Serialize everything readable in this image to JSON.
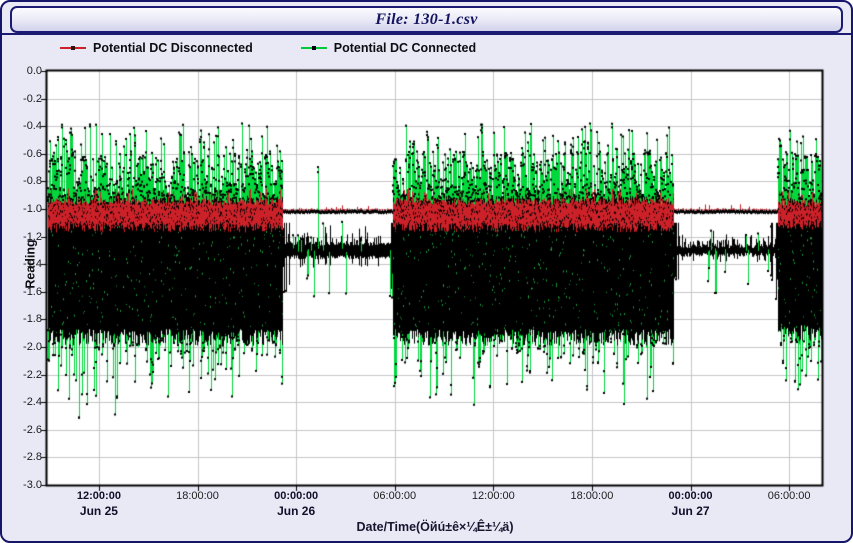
{
  "window": {
    "title": "File: 130-1.csv"
  },
  "colors": {
    "frame_border": "#15156a",
    "window_background": "#e9e9f6",
    "plot_background": "#ffffff",
    "grid": "#c6c6ca",
    "axis": "#000000",
    "red_series": "#cc2129",
    "green_series": "#00d93c",
    "marker_black": "#000000"
  },
  "legend": [
    {
      "label": "Potential DC Disconnected",
      "line_color": "#cc2129",
      "marker_color": "#35100f"
    },
    {
      "label": "Potential DC Connected",
      "line_color": "#00c93a",
      "marker_color": "#000000"
    }
  ],
  "chart_data": {
    "type": "line",
    "title": "File: 130-1.csv",
    "xlabel": "Date/Time(Öйú±ê×¼Ê±¼ä)",
    "ylabel": "Reading",
    "ylim": [
      -3.0,
      0.0
    ],
    "ytick_step": 0.2,
    "yticks": [
      "0.0",
      "-0.2",
      "-0.4",
      "-0.6",
      "-0.8",
      "-1.0",
      "-1.2",
      "-1.4",
      "-1.6",
      "-1.8",
      "-2.0",
      "-2.2",
      "-2.4",
      "-2.6",
      "-2.8",
      "-3.0"
    ],
    "grid": true,
    "legend_position": "top-left",
    "x_hours_range": [
      8.84,
      56.0
    ],
    "x_hours_origin": "Jun 25 00:00:00",
    "xticks": [
      {
        "t": 12,
        "time": "12:00:00",
        "date": "Jun 25"
      },
      {
        "t": 18,
        "time": "18:00:00"
      },
      {
        "t": 24,
        "time": "00:00:00",
        "date": "Jun 26"
      },
      {
        "t": 30,
        "time": "06:00:00"
      },
      {
        "t": 36,
        "time": "12:00:00"
      },
      {
        "t": 42,
        "time": "18:00:00"
      },
      {
        "t": 48,
        "time": "00:00:00",
        "date": "Jun 27"
      },
      {
        "t": 54,
        "time": "06:00:00"
      }
    ],
    "series": [
      {
        "name": "Potential DC Disconnected",
        "line_color": "#cc2129",
        "marker_color": "#000000",
        "segments": [
          {
            "t": [
              8.84,
              23.2
            ],
            "mode": "active",
            "band": [
              -1.17,
              -0.92
            ],
            "spike_up_max": -0.85
          },
          {
            "t": [
              23.2,
              29.85
            ],
            "mode": "quiet",
            "level": -1.02
          },
          {
            "t": [
              29.85,
              46.95
            ],
            "mode": "active",
            "band": [
              -1.17,
              -0.92
            ],
            "spike_up_max": -0.85
          },
          {
            "t": [
              46.95,
              53.3
            ],
            "mode": "quiet",
            "level": -1.02
          },
          {
            "t": [
              53.3,
              56.0
            ],
            "mode": "active",
            "band": [
              -1.15,
              -0.93
            ],
            "spike_up_max": -0.86
          }
        ]
      },
      {
        "name": "Potential DC Connected",
        "line_color": "#00d93c",
        "marker_color": "#000000",
        "segments": [
          {
            "t": [
              8.84,
              23.2
            ],
            "mode": "active",
            "core": [
              -1.93,
              -0.95
            ],
            "spike_up_max": -0.36,
            "spike_down_max": -2.62
          },
          {
            "t": [
              23.2,
              29.85
            ],
            "mode": "quiet",
            "band_center": -1.3,
            "band_halfwidth": 0.05,
            "spike_up_max": -0.45,
            "spike_down_max": -1.78
          },
          {
            "t": [
              29.85,
              46.95
            ],
            "mode": "active",
            "core": [
              -1.93,
              -0.95
            ],
            "spike_up_max": -0.35,
            "spike_down_max": -2.5
          },
          {
            "t": [
              46.95,
              53.3
            ],
            "mode": "quiet",
            "band_center": -1.3,
            "band_halfwidth": 0.032,
            "spike_up_max": -1.02,
            "spike_down_max": -1.8
          },
          {
            "t": [
              53.3,
              56.0
            ],
            "mode": "active",
            "core": [
              -1.9,
              -0.97
            ],
            "spike_up_max": -0.38,
            "spike_down_max": -2.4
          }
        ]
      }
    ]
  }
}
